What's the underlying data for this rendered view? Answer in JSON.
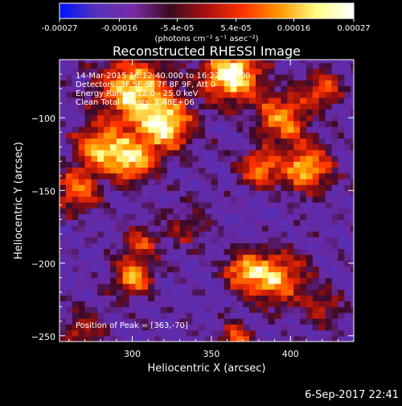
{
  "window": {
    "background": "#000000",
    "footer_date": "6-Sep-2017 22:41"
  },
  "colorbar": {
    "tick_labels": [
      "-0.00027",
      "-0.00016",
      "-5.4e-05",
      "5.4e-05",
      "0.00016",
      "0.00027"
    ],
    "unit_label": "(photons cm⁻² s⁻¹ asec⁻²)",
    "colormap_stops": [
      "#0011ff",
      "#5533bb",
      "#7a2aa8",
      "#3a0a20",
      "#aa1010",
      "#ff3300",
      "#ff9900",
      "#ffff88",
      "#ffffff"
    ]
  },
  "chart_data": {
    "type": "heatmap",
    "title": "Reconstructed RHESSI Image",
    "xlabel": "Heliocentric X (arcsec)",
    "ylabel": "Heliocentric Y (arcsec)",
    "xlim": [
      254,
      440
    ],
    "ylim": [
      -254,
      -60
    ],
    "x_ticks": [
      300,
      350,
      400
    ],
    "y_ticks": [
      -100,
      -150,
      -200,
      -250
    ],
    "x_tick_labels": [
      "300",
      "350",
      "400"
    ],
    "y_tick_labels": [
      "−100",
      "−150",
      "−200",
      "−250"
    ],
    "value_range": [
      -0.00027,
      0.00027
    ],
    "peak": [
      363,
      -70
    ],
    "annotations": [
      "14-Mar-2015 16:12:40.000 to 16:22:40.000",
      "Detectors: 3F 5F 6F 7F 8F 9F, Att 0",
      "Energy Range: 12.0 - 25.0 keV",
      "Clean     Total counts: 1.48E+06"
    ],
    "peak_label": "Position of Peak = [363,-70]"
  }
}
